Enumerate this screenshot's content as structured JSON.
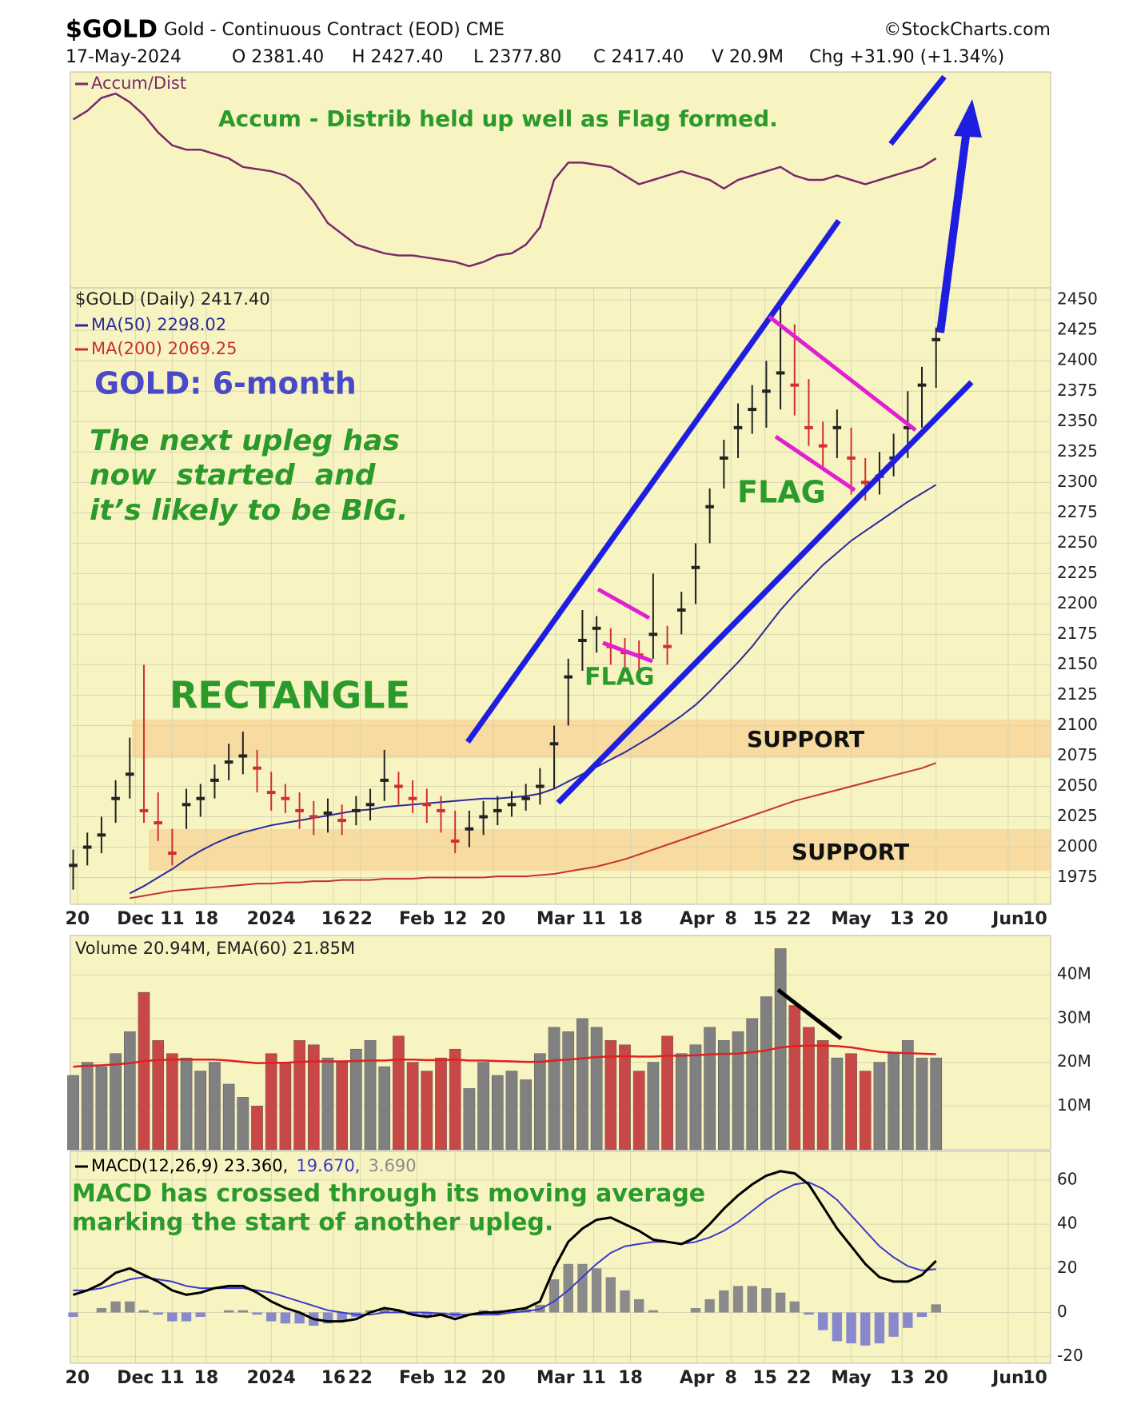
{
  "header": {
    "symbol": "$GOLD",
    "description": "Gold - Continuous Contract (EOD) CME",
    "source": "©StockCharts.com",
    "date": "17-May-2024",
    "open": "O 2381.40",
    "high": "H 2427.40",
    "low": "L 2377.80",
    "close": "C 2417.40",
    "volume": "V 20.9M",
    "change": "Chg +31.90 (+1.34%)"
  },
  "chart_data": [
    {
      "type": "line",
      "series": [
        {
          "name": "Accum/Dist",
          "color": "#7a2a6a",
          "values": [
            78,
            82,
            88,
            90,
            86,
            80,
            72,
            66,
            64,
            64,
            62,
            60,
            56,
            55,
            54,
            52,
            48,
            40,
            30,
            25,
            20,
            18,
            16,
            15,
            15,
            14,
            13,
            12,
            10,
            12,
            15,
            16,
            20,
            28,
            50,
            58,
            58,
            57,
            56,
            52,
            48,
            50,
            52,
            54,
            52,
            50,
            46,
            50,
            52,
            54,
            56,
            52,
            50,
            50,
            52,
            50,
            48,
            50,
            52,
            54,
            56,
            60
          ]
        }
      ],
      "ylim": [
        0,
        100
      ],
      "xlim": [
        -0.2,
        69.1
      ],
      "annotations": [
        "Accum - Distrib held up well as Flag formed."
      ]
    },
    {
      "type": "hlc",
      "legend": "$GOLD (Daily) 2417.40",
      "up_color": "#222222",
      "down_color": "#d03030",
      "close": [
        1985,
        2000,
        2010,
        2040,
        2060,
        2030,
        2020,
        1995,
        2035,
        2040,
        2055,
        2070,
        2075,
        2065,
        2045,
        2040,
        2030,
        2025,
        2028,
        2022,
        2030,
        2035,
        2055,
        2050,
        2040,
        2035,
        2030,
        2005,
        2015,
        2025,
        2030,
        2035,
        2040,
        2050,
        2085,
        2140,
        2170,
        2180,
        2165,
        2160,
        2158,
        2175,
        2165,
        2195,
        2230,
        2280,
        2320,
        2345,
        2360,
        2375,
        2390,
        2380,
        2345,
        2330,
        2345,
        2320,
        2300,
        2305,
        2320,
        2345,
        2380,
        2417.4
      ],
      "high": [
        1998,
        2012,
        2025,
        2055,
        2090,
        2150,
        2045,
        2015,
        2048,
        2052,
        2068,
        2085,
        2095,
        2080,
        2062,
        2052,
        2045,
        2038,
        2040,
        2035,
        2042,
        2048,
        2080,
        2062,
        2055,
        2048,
        2042,
        2030,
        2030,
        2038,
        2042,
        2046,
        2052,
        2065,
        2100,
        2155,
        2195,
        2190,
        2180,
        2172,
        2170,
        2225,
        2182,
        2210,
        2250,
        2295,
        2335,
        2365,
        2380,
        2400,
        2448,
        2430,
        2385,
        2350,
        2360,
        2345,
        2320,
        2325,
        2340,
        2375,
        2395,
        2427.4
      ],
      "low": [
        1965,
        1985,
        1995,
        2020,
        2040,
        2020,
        2005,
        1985,
        2015,
        2025,
        2040,
        2055,
        2060,
        2045,
        2030,
        2028,
        2015,
        2010,
        2012,
        2010,
        2018,
        2022,
        2038,
        2035,
        2028,
        2020,
        2012,
        1995,
        2000,
        2010,
        2018,
        2025,
        2030,
        2035,
        2048,
        2100,
        2145,
        2160,
        2150,
        2148,
        2145,
        2155,
        2150,
        2175,
        2200,
        2250,
        2295,
        2320,
        2340,
        2345,
        2360,
        2355,
        2330,
        2310,
        2320,
        2290,
        2285,
        2290,
        2305,
        2320,
        2345,
        2377.8
      ],
      "series": [
        {
          "name": "MA(50) 2298.02",
          "color": "#2a2a9a",
          "values": [
            null,
            null,
            null,
            null,
            1962,
            1968,
            1975,
            1982,
            1990,
            1997,
            2003,
            2008,
            2012,
            2015,
            2018,
            2020,
            2022,
            2024,
            2026,
            2028,
            2030,
            2031,
            2033,
            2034,
            2035,
            2036,
            2037,
            2038,
            2039,
            2040,
            2040,
            2041,
            2042,
            2044,
            2048,
            2054,
            2060,
            2066,
            2072,
            2078,
            2085,
            2092,
            2100,
            2108,
            2117,
            2128,
            2140,
            2152,
            2165,
            2180,
            2195,
            2208,
            2220,
            2232,
            2242,
            2252,
            2260,
            2268,
            2276,
            2284,
            2291,
            2298.02
          ]
        },
        {
          "name": "MA(200) 2069.25",
          "color": "#c83030",
          "values": [
            null,
            null,
            null,
            null,
            1958,
            1960,
            1962,
            1964,
            1965,
            1966,
            1967,
            1968,
            1969,
            1970,
            1970,
            1971,
            1971,
            1972,
            1972,
            1973,
            1973,
            1973,
            1974,
            1974,
            1974,
            1975,
            1975,
            1975,
            1975,
            1975,
            1976,
            1976,
            1976,
            1977,
            1978,
            1980,
            1982,
            1984,
            1987,
            1990,
            1994,
            1998,
            2002,
            2006,
            2010,
            2014,
            2018,
            2022,
            2026,
            2030,
            2034,
            2038,
            2041,
            2044,
            2047,
            2050,
            2053,
            2056,
            2059,
            2062,
            2065,
            2069.25
          ]
        }
      ],
      "ylim": [
        1953,
        2460
      ],
      "yticks": [
        1975,
        2000,
        2025,
        2050,
        2075,
        2100,
        2125,
        2150,
        2175,
        2200,
        2225,
        2250,
        2275,
        2300,
        2325,
        2350,
        2375,
        2400,
        2425,
        2450
      ],
      "xlim": [
        -0.2,
        69.1
      ],
      "xticks": [
        {
          "value": 0.3,
          "label": "20"
        },
        {
          "value": 4.4,
          "label": "Dec"
        },
        {
          "value": 7,
          "label": "11"
        },
        {
          "value": 9.4,
          "label": "18"
        },
        {
          "value": 14,
          "label": "2024"
        },
        {
          "value": 18.4,
          "label": "16"
        },
        {
          "value": 20.3,
          "label": "22"
        },
        {
          "value": 24.3,
          "label": "Feb"
        },
        {
          "value": 27,
          "label": "12"
        },
        {
          "value": 29.7,
          "label": "20"
        },
        {
          "value": 34.1,
          "label": "Mar"
        },
        {
          "value": 36.8,
          "label": "11"
        },
        {
          "value": 39.4,
          "label": "18"
        },
        {
          "value": 44.1,
          "label": "Apr"
        },
        {
          "value": 46.5,
          "label": "8"
        },
        {
          "value": 48.9,
          "label": "15"
        },
        {
          "value": 51.3,
          "label": "22"
        },
        {
          "value": 55,
          "label": "May"
        },
        {
          "value": 58.6,
          "label": "13"
        },
        {
          "value": 61,
          "label": "20"
        },
        {
          "value": 66.1,
          "label": "Jun"
        },
        {
          "value": 68,
          "label": "10"
        }
      ],
      "annotations": [
        "GOLD: 6-month",
        "The next upleg has",
        "now  started  and",
        "it’s likely to be BIG.",
        "RECTANGLE",
        "FLAG",
        "FLAG",
        "SUPPORT",
        "SUPPORT"
      ]
    },
    {
      "type": "bar",
      "legend": "Volume 20.94M, EMA(60) 21.85M",
      "up_color": "#808080",
      "down_color": "#c84848",
      "values": [
        17,
        20,
        19,
        22,
        27,
        36,
        25,
        22,
        21,
        18,
        20,
        15,
        12,
        10,
        22,
        20,
        25,
        24,
        21,
        20,
        23,
        25,
        19,
        26,
        20,
        18,
        21,
        23,
        14,
        20,
        17,
        18,
        16,
        22,
        28,
        27,
        30,
        28,
        25,
        24,
        18,
        20,
        26,
        22,
        24,
        28,
        25,
        27,
        30,
        35,
        46,
        33,
        28,
        25,
        21,
        22,
        18,
        20,
        22,
        25,
        21,
        21
      ],
      "series": [
        {
          "name": "EMA(60)",
          "color": "#e02020",
          "values": [
            19,
            19.2,
            19.3,
            19.5,
            19.8,
            20.3,
            20.5,
            20.6,
            20.6,
            20.6,
            20.6,
            20.4,
            20.1,
            19.8,
            19.9,
            19.9,
            20.1,
            20.2,
            20.2,
            20.2,
            20.3,
            20.4,
            20.4,
            20.6,
            20.6,
            20.5,
            20.5,
            20.6,
            20.4,
            20.4,
            20.3,
            20.2,
            20.1,
            20.1,
            20.4,
            20.6,
            20.9,
            21.2,
            21.3,
            21.4,
            21.3,
            21.3,
            21.5,
            21.5,
            21.6,
            21.8,
            21.9,
            22,
            22.3,
            22.7,
            23.4,
            23.7,
            23.8,
            23.8,
            23.7,
            23.4,
            22.9,
            22.4,
            22.2,
            22.1,
            21.95,
            21.85
          ]
        }
      ],
      "ylim": [
        0,
        49
      ],
      "yticks": [
        {
          "value": 10,
          "label": "10M"
        },
        {
          "value": 20,
          "label": "20M"
        },
        {
          "value": 30,
          "label": "30M"
        },
        {
          "value": 40,
          "label": "40M"
        }
      ],
      "xlim": [
        -0.2,
        69.1
      ]
    },
    {
      "type": "macd",
      "series": [
        {
          "name": "MACD(12,26,9) 23.360,",
          "color": "#000000",
          "values": [
            8,
            10,
            13,
            18,
            20,
            17,
            14,
            10,
            8,
            9,
            11,
            12,
            12,
            9,
            5,
            2,
            0,
            -3,
            -4,
            -4,
            -3,
            0,
            2,
            1,
            -1,
            -2,
            -1,
            -3,
            -1,
            0,
            0,
            1,
            2,
            5,
            20,
            32,
            38,
            42,
            43,
            40,
            37,
            33,
            32,
            31,
            34,
            40,
            47,
            53,
            58,
            62,
            64,
            63,
            58,
            48,
            38,
            30,
            22,
            16,
            14,
            14,
            17,
            23.36
          ]
        },
        {
          "name": "19.670,",
          "color": "#3a3ac8",
          "values": [
            10,
            10,
            11,
            13,
            15,
            16,
            15,
            14,
            12,
            11,
            11,
            11,
            11,
            10,
            9,
            7,
            5,
            3,
            1,
            0,
            -1,
            -1,
            0,
            0,
            0,
            0,
            -0.5,
            -1,
            -1,
            -1,
            -1,
            0,
            0.5,
            1.5,
            5,
            10,
            16,
            22,
            27,
            30,
            31,
            32,
            32,
            31,
            32,
            34,
            37,
            41,
            46,
            51,
            55,
            58,
            59,
            56,
            51,
            44,
            37,
            30,
            25,
            21,
            19,
            19.67
          ]
        },
        {
          "name": "3.690",
          "color": "#8a8a8a",
          "negative_color": "#8888cc",
          "values": [
            -2,
            0,
            2,
            5,
            5,
            1,
            -1,
            -4,
            -4,
            -2,
            0,
            1,
            1,
            -1,
            -4,
            -5,
            -5,
            -6,
            -5,
            -4,
            -2,
            1,
            2,
            1,
            -1,
            -2,
            -0.5,
            -2,
            0,
            1,
            1,
            1,
            1.5,
            3.5,
            15,
            22,
            22,
            20,
            16,
            10,
            6,
            1,
            0,
            0,
            2,
            6,
            10,
            12,
            12,
            11,
            9,
            5,
            -1,
            -8,
            -13,
            -14,
            -15,
            -14,
            -11,
            -7,
            -2,
            3.69
          ]
        }
      ],
      "ylim": [
        -23,
        73
      ],
      "yticks": [
        -20,
        0,
        20,
        40,
        60
      ],
      "xlim": [
        -0.2,
        69.1
      ],
      "xticks": [
        {
          "value": 0.3,
          "label": "20"
        },
        {
          "value": 4.4,
          "label": "Dec"
        },
        {
          "value": 7,
          "label": "11"
        },
        {
          "value": 9.4,
          "label": "18"
        },
        {
          "value": 14,
          "label": "2024"
        },
        {
          "value": 18.4,
          "label": "16"
        },
        {
          "value": 20.3,
          "label": "22"
        },
        {
          "value": 24.3,
          "label": "Feb"
        },
        {
          "value": 27,
          "label": "12"
        },
        {
          "value": 29.7,
          "label": "20"
        },
        {
          "value": 34.1,
          "label": "Mar"
        },
        {
          "value": 36.8,
          "label": "11"
        },
        {
          "value": 39.4,
          "label": "18"
        },
        {
          "value": 44.1,
          "label": "Apr"
        },
        {
          "value": 46.5,
          "label": "8"
        },
        {
          "value": 48.9,
          "label": "15"
        },
        {
          "value": 51.3,
          "label": "22"
        },
        {
          "value": 55,
          "label": "May"
        },
        {
          "value": 58.6,
          "label": "13"
        },
        {
          "value": 61,
          "label": "20"
        },
        {
          "value": 66.1,
          "label": "Jun"
        },
        {
          "value": 68,
          "label": "10"
        }
      ],
      "annotations": [
        "MACD has crossed through its moving average",
        "marking the start of another upleg."
      ]
    }
  ]
}
